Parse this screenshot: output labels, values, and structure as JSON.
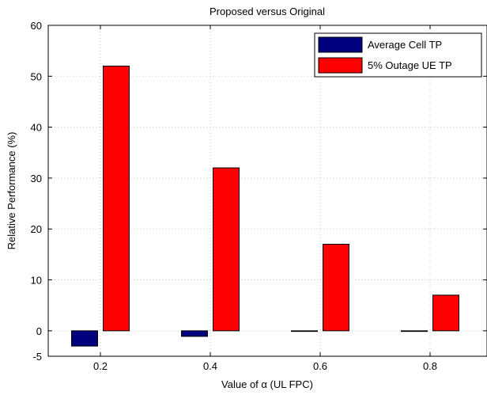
{
  "chart_data": {
    "type": "bar",
    "title": "Proposed versus Original",
    "xlabel": "Value of α (UL FPC)",
    "ylabel": "Relative Performance (%)",
    "categories": [
      "0.2",
      "0.4",
      "0.6",
      "0.8"
    ],
    "x_ticks": [
      "0.2",
      "0.4",
      "0.6",
      "0.8"
    ],
    "y_ticks": [
      "-5",
      "0",
      "10",
      "20",
      "30",
      "40",
      "50",
      "60"
    ],
    "ylim": [
      -5,
      60
    ],
    "grid": true,
    "legend_position": "top-right",
    "series": [
      {
        "name": "Average Cell TP",
        "color": "#00007f",
        "values": [
          -3,
          -1.1,
          -0.1,
          -0.1
        ]
      },
      {
        "name": "5% Outage UE TP",
        "color": "#ff0000",
        "values": [
          52,
          32,
          17,
          7
        ]
      }
    ]
  }
}
